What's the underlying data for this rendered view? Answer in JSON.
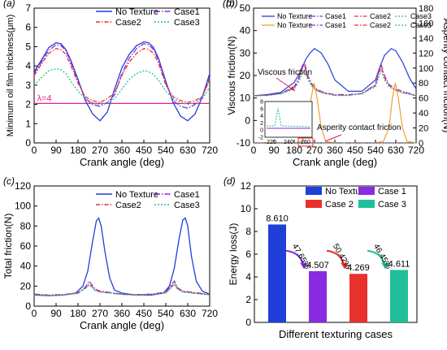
{
  "colors": {
    "no_texture": "#1f3fd8",
    "case1": "#8a2be2",
    "case2": "#e8312a",
    "case3": "#1fbf9a",
    "asperity": "#f0a030",
    "lambda": "#e91e8c",
    "text": "#000000",
    "annotation": "#d81b60",
    "inset_box": "#e8312a"
  },
  "chart_data": [
    {
      "id": "a",
      "panel_label": "(a)",
      "type": "line",
      "xlabel": "Crank angle (deg)",
      "ylabel": "Minimum oil film thickness(μm)",
      "xlim": [
        0,
        720
      ],
      "ylim": [
        0,
        7
      ],
      "xticks": [
        "0",
        "90",
        "180",
        "270",
        "360",
        "450",
        "540",
        "630",
        "720"
      ],
      "yticks": [
        "0",
        "1",
        "2",
        "3",
        "4",
        "5",
        "6",
        "7"
      ],
      "legend": [
        "No Texture",
        "Case1",
        "Case2",
        "Case3"
      ],
      "legend_position": "top-right",
      "reference_line": {
        "y": 2.05,
        "label": "λ=4"
      },
      "series": [
        {
          "name": "No Texture",
          "x": [
            0,
            30,
            60,
            90,
            110,
            130,
            150,
            180,
            210,
            240,
            270,
            300,
            330,
            360,
            390,
            420,
            450,
            470,
            490,
            510,
            540,
            570,
            600,
            630,
            660,
            690,
            720
          ],
          "y": [
            3.7,
            4.3,
            4.95,
            5.2,
            5.15,
            4.85,
            4.3,
            3.3,
            2.2,
            1.5,
            1.15,
            1.6,
            2.8,
            3.9,
            4.6,
            5.05,
            5.25,
            5.2,
            4.95,
            4.4,
            3.2,
            2.1,
            1.4,
            1.15,
            1.5,
            2.4,
            3.6
          ]
        },
        {
          "name": "Case1",
          "x": [
            0,
            30,
            60,
            90,
            110,
            130,
            150,
            180,
            210,
            240,
            270,
            300,
            330,
            360,
            390,
            420,
            450,
            470,
            490,
            510,
            540,
            570,
            600,
            630,
            660,
            690,
            720
          ],
          "y": [
            3.6,
            4.2,
            4.8,
            5.1,
            5.05,
            4.8,
            4.2,
            3.2,
            2.3,
            2.0,
            1.9,
            2.1,
            2.5,
            3.6,
            4.4,
            4.9,
            5.15,
            5.1,
            4.85,
            4.3,
            3.1,
            2.2,
            1.9,
            1.8,
            2.0,
            2.4,
            3.4
          ]
        },
        {
          "name": "Case2",
          "x": [
            0,
            30,
            60,
            90,
            110,
            130,
            150,
            180,
            210,
            240,
            270,
            300,
            330,
            360,
            390,
            420,
            450,
            470,
            490,
            510,
            540,
            570,
            600,
            630,
            660,
            690,
            720
          ],
          "y": [
            3.5,
            4.1,
            4.65,
            4.9,
            4.85,
            4.6,
            4.05,
            3.1,
            2.4,
            2.2,
            2.1,
            2.3,
            2.6,
            3.5,
            4.2,
            4.65,
            4.9,
            4.85,
            4.65,
            4.15,
            3.0,
            2.4,
            2.2,
            2.1,
            2.2,
            2.4,
            3.3
          ]
        },
        {
          "name": "Case3",
          "x": [
            0,
            30,
            60,
            90,
            110,
            130,
            150,
            180,
            210,
            240,
            270,
            300,
            330,
            360,
            390,
            420,
            450,
            470,
            490,
            510,
            540,
            570,
            600,
            630,
            660,
            690,
            720
          ],
          "y": [
            3.0,
            3.4,
            3.75,
            3.85,
            3.8,
            3.6,
            3.2,
            2.7,
            2.3,
            2.1,
            2.0,
            2.1,
            2.3,
            2.8,
            3.3,
            3.6,
            3.75,
            3.7,
            3.55,
            3.25,
            2.7,
            2.3,
            2.1,
            2.0,
            2.1,
            2.3,
            2.9
          ]
        }
      ]
    },
    {
      "id": "b",
      "panel_label": "(b)",
      "type": "line",
      "xlabel": "Crank angle (deg)",
      "ylabel": "Viscous friction(N)",
      "y2label": "Asperity contact friction(N)",
      "xlim": [
        0,
        720
      ],
      "ylim": [
        -10,
        50
      ],
      "y2lim": [
        0,
        180
      ],
      "xticks": [
        "0",
        "90",
        "180",
        "270",
        "360",
        "450",
        "540",
        "630",
        "720"
      ],
      "yticks": [
        "-10",
        "0",
        "10",
        "20",
        "30",
        "40",
        "50"
      ],
      "y2ticks": [
        "0",
        "20",
        "40",
        "60",
        "80",
        "100",
        "120",
        "140",
        "160",
        "180"
      ],
      "legend": [
        "No Texture",
        "Case1",
        "Case2",
        "Case3",
        "No Texture",
        "Case1",
        "Case2",
        "Case3"
      ],
      "legend_position": "top",
      "annotations": [
        "Viscous friction",
        "Asperity contact friction"
      ],
      "inset": {
        "xticks": [
          "220",
          "240",
          "260"
        ],
        "yticks": [
          "-2",
          "0",
          "2",
          "4",
          "6",
          "8"
        ]
      },
      "series": [
        {
          "name": "No Texture",
          "kind": "viscous",
          "x": [
            0,
            60,
            120,
            180,
            210,
            230,
            250,
            270,
            300,
            330,
            360,
            420,
            480,
            540,
            560,
            580,
            610,
            630,
            660,
            690,
            720
          ],
          "y": [
            11,
            11.5,
            12.5,
            17,
            22,
            27,
            30,
            32,
            30,
            25,
            18,
            13,
            13,
            18,
            24,
            29,
            32,
            31,
            26,
            19,
            14
          ]
        },
        {
          "name": "Case1",
          "kind": "viscous",
          "x": [
            0,
            60,
            120,
            180,
            200,
            215,
            225,
            240,
            260,
            280,
            300,
            330,
            360,
            420,
            480,
            540,
            555,
            565,
            580,
            600,
            630,
            660,
            690,
            720
          ],
          "y": [
            11,
            11.2,
            12,
            15,
            19,
            24,
            26,
            20,
            16,
            14,
            13,
            12,
            11.5,
            11.5,
            12,
            16,
            22,
            25,
            20,
            16,
            14,
            13,
            12,
            11
          ]
        },
        {
          "name": "Case2",
          "kind": "viscous",
          "x": [
            0,
            60,
            120,
            180,
            200,
            215,
            225,
            240,
            260,
            280,
            300,
            330,
            360,
            420,
            480,
            540,
            555,
            565,
            580,
            600,
            630,
            660,
            690,
            720
          ],
          "y": [
            11,
            11.2,
            12,
            14.5,
            18,
            23,
            24.5,
            19,
            15.5,
            13.5,
            12.5,
            11.8,
            11.2,
            11.2,
            12,
            15.5,
            21,
            24,
            19,
            15.5,
            13.5,
            12.5,
            11.8,
            11
          ]
        },
        {
          "name": "Case3",
          "kind": "viscous",
          "x": [
            0,
            60,
            120,
            180,
            200,
            215,
            225,
            240,
            260,
            280,
            300,
            330,
            360,
            420,
            480,
            540,
            555,
            565,
            580,
            600,
            630,
            660,
            690,
            720
          ],
          "y": [
            11,
            11.1,
            11.8,
            14,
            17,
            21,
            22.5,
            18,
            15,
            13.2,
            12.3,
            11.6,
            11.1,
            11.1,
            11.8,
            15,
            19.5,
            22,
            18,
            15,
            13.2,
            12.3,
            11.6,
            11
          ]
        },
        {
          "name": "No Texture",
          "kind": "asperity",
          "x": [
            0,
            180,
            215,
            240,
            255,
            268,
            280,
            300,
            320,
            360,
            540,
            575,
            600,
            615,
            628,
            640,
            660,
            680,
            720
          ],
          "y": [
            0,
            0,
            2,
            20,
            60,
            80,
            62,
            20,
            2,
            0,
            0,
            2,
            20,
            60,
            80,
            62,
            20,
            2,
            0
          ]
        },
        {
          "name": "Case1",
          "kind": "asperity",
          "x": [
            0,
            720
          ],
          "y": [
            0,
            0
          ]
        },
        {
          "name": "Case2",
          "kind": "asperity",
          "x": [
            0,
            720
          ],
          "y": [
            0,
            0
          ]
        },
        {
          "name": "Case3",
          "kind": "asperity",
          "x": [
            0,
            720
          ],
          "y": [
            0,
            0
          ]
        }
      ]
    },
    {
      "id": "c",
      "panel_label": "(c)",
      "type": "line",
      "xlabel": "Crank angle (deg)",
      "ylabel": "Total friction(N)",
      "xlim": [
        0,
        720
      ],
      "ylim": [
        0,
        120
      ],
      "xticks": [
        "0",
        "90",
        "180",
        "270",
        "360",
        "450",
        "540",
        "630",
        "720"
      ],
      "yticks": [
        "0",
        "20",
        "40",
        "60",
        "80",
        "100",
        "120"
      ],
      "legend": [
        "No Texture",
        "Case1",
        "Case2",
        "Case3"
      ],
      "legend_position": "top-right",
      "series": [
        {
          "name": "No Texture",
          "x": [
            0,
            60,
            120,
            170,
            200,
            220,
            240,
            255,
            265,
            275,
            290,
            310,
            330,
            360,
            420,
            480,
            530,
            555,
            575,
            595,
            610,
            620,
            630,
            645,
            665,
            690,
            720
          ],
          "y": [
            11,
            10.5,
            11,
            13,
            20,
            35,
            65,
            85,
            88,
            80,
            55,
            28,
            16,
            13,
            11,
            11,
            13,
            20,
            38,
            68,
            86,
            88,
            80,
            50,
            25,
            15,
            12
          ]
        },
        {
          "name": "Case1",
          "x": [
            0,
            60,
            120,
            180,
            210,
            225,
            235,
            250,
            270,
            300,
            360,
            420,
            480,
            540,
            565,
            575,
            590,
            610,
            640,
            680,
            720
          ],
          "y": [
            12,
            11,
            11.5,
            13.5,
            19,
            25,
            22,
            17,
            15,
            14,
            12,
            11.5,
            12,
            14,
            22,
            25,
            18,
            15,
            14,
            13,
            12
          ]
        },
        {
          "name": "Case2",
          "x": [
            0,
            60,
            120,
            180,
            210,
            225,
            235,
            250,
            270,
            300,
            360,
            420,
            480,
            540,
            565,
            575,
            590,
            610,
            640,
            680,
            720
          ],
          "y": [
            11.5,
            10.8,
            11.2,
            13,
            18,
            22,
            20,
            16,
            14.5,
            13.5,
            11.8,
            11.2,
            11.8,
            13.5,
            20,
            22.5,
            17,
            14.5,
            13.5,
            12.5,
            11.5
          ]
        },
        {
          "name": "Case3",
          "x": [
            0,
            60,
            120,
            180,
            210,
            225,
            235,
            250,
            270,
            300,
            360,
            420,
            480,
            540,
            565,
            575,
            590,
            610,
            640,
            680,
            720
          ],
          "y": [
            11.2,
            10.6,
            11,
            12.8,
            17.5,
            21,
            19.5,
            15.5,
            14,
            13.2,
            11.6,
            11,
            11.6,
            13.2,
            19,
            21.5,
            16.5,
            14,
            13.2,
            12.2,
            11.2
          ]
        }
      ]
    },
    {
      "id": "d",
      "panel_label": "(d)",
      "type": "bar",
      "xlabel": "Different texturing cases",
      "ylabel": "Energy loss(J)",
      "ylim": [
        0,
        12
      ],
      "yticks": [
        "0",
        "2",
        "4",
        "6",
        "8",
        "10",
        "12"
      ],
      "categories": [
        "No Texture",
        "Case 1",
        "Case 2",
        "Case 3"
      ],
      "values": [
        8.61,
        4.507,
        4.269,
        4.611
      ],
      "value_labels": [
        "8.610",
        "4.507",
        "4.269",
        "4.611"
      ],
      "legend": [
        "No Texture",
        "Case 1",
        "Case 2",
        "Case 3"
      ],
      "legend_position": "top-right",
      "reductions": [
        "47.65%",
        "50.42%",
        "46.45%"
      ]
    }
  ]
}
